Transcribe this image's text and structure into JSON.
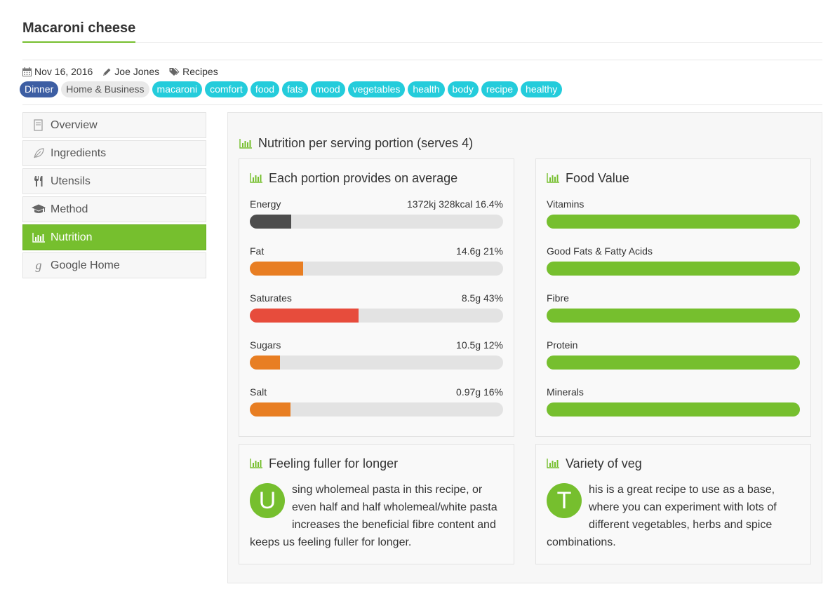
{
  "page": {
    "title": "Macaroni cheese"
  },
  "meta": {
    "date": "Nov 16, 2016",
    "author": "Joe Jones",
    "category": "Recipes"
  },
  "tags": {
    "primary": "Dinner",
    "light": "Home & Business",
    "list": [
      "macaroni",
      "comfort",
      "food",
      "fats",
      "mood",
      "vegetables",
      "health",
      "body",
      "recipe",
      "healthy"
    ]
  },
  "sidebar": {
    "items": [
      {
        "label": "Overview",
        "icon": "document-icon"
      },
      {
        "label": "Ingredients",
        "icon": "leaf-icon"
      },
      {
        "label": "Utensils",
        "icon": "cutlery-icon"
      },
      {
        "label": "Method",
        "icon": "graduation-cap-icon"
      },
      {
        "label": "Nutrition",
        "icon": "bar-chart-icon",
        "active": true
      },
      {
        "label": "Google Home",
        "icon": "google-icon"
      }
    ]
  },
  "nutrition": {
    "heading": "Nutrition per serving portion (serves 4)",
    "portion": {
      "title": "Each portion provides on average",
      "items": [
        {
          "label": "Energy",
          "value": "1372kj 328kcal 16.4%",
          "percent": 16.4,
          "color": "#4d4d4d"
        },
        {
          "label": "Fat",
          "value": "14.6g 21%",
          "percent": 21,
          "color": "#e87e23"
        },
        {
          "label": "Saturates",
          "value": "8.5g 43%",
          "percent": 43,
          "color": "#e74c3c"
        },
        {
          "label": "Sugars",
          "value": "10.5g 12%",
          "percent": 12,
          "color": "#e87e23"
        },
        {
          "label": "Salt",
          "value": "0.97g 16%",
          "percent": 16,
          "color": "#e87e23"
        }
      ]
    },
    "food_value": {
      "title": "Food Value",
      "items": [
        {
          "label": "Vitamins",
          "percent": 100,
          "color": "#76bf2e"
        },
        {
          "label": "Good Fats & Fatty Acids",
          "percent": 100,
          "color": "#76bf2e"
        },
        {
          "label": "Fibre",
          "percent": 100,
          "color": "#76bf2e"
        },
        {
          "label": "Protein",
          "percent": 100,
          "color": "#76bf2e"
        },
        {
          "label": "Minerals",
          "percent": 100,
          "color": "#76bf2e"
        }
      ]
    },
    "fuller": {
      "title": "Feeling fuller for longer",
      "dropcap": "U",
      "text": "sing wholemeal pasta in this recipe, or even half and half wholemeal/white pasta increases the beneficial fibre content and keeps us feeling fuller for longer."
    },
    "veg": {
      "title": "Variety of veg",
      "dropcap": "T",
      "text": "his is a great recipe to use as a base, where you can experiment with lots of different vegetables, herbs and spice combinations."
    }
  },
  "colors": {
    "accent": "#76bf2e",
    "tag_primary": "#3d5ea3",
    "tag_cyan": "#24ccdb"
  }
}
